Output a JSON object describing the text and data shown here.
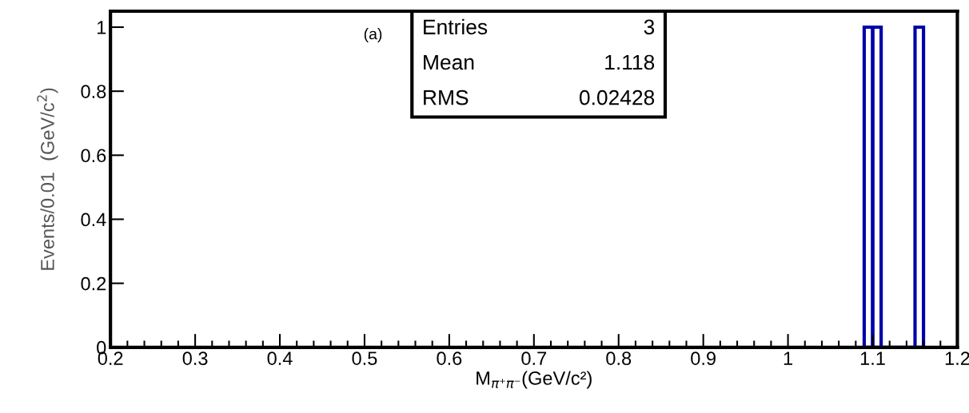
{
  "chart_data": {
    "type": "histogram",
    "xlabel": "M$_{π⁺π⁻}$(GeV/c²)",
    "ylabel": "Events/0.01  (GeV/c$^{2}$)",
    "bins": [
      1.09,
      1.1,
      1.11,
      1.15,
      1.16
    ],
    "values": [
      1,
      1,
      0,
      1
    ],
    "color": "#0000aa",
    "xlim": [
      0.2,
      1.2
    ],
    "xticks": [
      0.2,
      0.3,
      0.4,
      0.5,
      0.6,
      0.7,
      0.8,
      0.9,
      1,
      1.1,
      1.2
    ],
    "ylim": [
      0,
      1.05
    ],
    "yticks": [
      0,
      0.2,
      0.4,
      0.6,
      0.8,
      1
    ],
    "grid": false,
    "legend": false,
    "annotations": [
      "(a)",
      "Entries",
      "3",
      "Mean",
      "1.118",
      "RMS",
      "0.02428"
    ]
  }
}
